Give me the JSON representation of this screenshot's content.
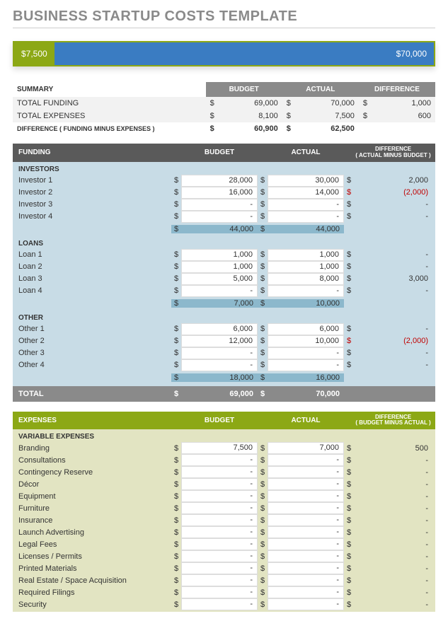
{
  "title": "BUSINESS STARTUP COSTS TEMPLATE",
  "bar": {
    "left_value": "$7,500",
    "right_value": "$70,000",
    "left_bg": "#8ca815",
    "right_bg": "#3a7cc2",
    "border": "#8ca815"
  },
  "summary": {
    "header": {
      "label": "SUMMARY",
      "col1": "BUDGET",
      "col2": "ACTUAL",
      "col3": "DIFFERENCE"
    },
    "rows": [
      {
        "label": "TOTAL FUNDING",
        "budget": "69,000",
        "actual": "70,000",
        "diff": "1,000",
        "light": true
      },
      {
        "label": "TOTAL EXPENSES",
        "budget": "8,100",
        "actual": "7,500",
        "diff": "600",
        "light": true
      }
    ],
    "diff_row": {
      "label": "DIFFERENCE  ( FUNDING MINUS EXPENSES )",
      "budget": "60,900",
      "actual": "62,500"
    }
  },
  "funding": {
    "header": {
      "title": "FUNDING",
      "col1": "BUDGET",
      "col2": "ACTUAL",
      "col3_l1": "DIFFERENCE",
      "col3_l2": "( ACTUAL MINUS BUDGET )"
    },
    "groups": [
      {
        "label": "INVESTORS",
        "rows": [
          {
            "name": "Investor 1",
            "budget": "28,000",
            "actual": "30,000",
            "diff": "2,000"
          },
          {
            "name": "Investor 2",
            "budget": "16,000",
            "actual": "14,000",
            "diff": "(2,000)",
            "neg": true
          },
          {
            "name": "Investor 3",
            "budget": "-",
            "actual": "-",
            "diff": "-"
          },
          {
            "name": "Investor 4",
            "budget": "-",
            "actual": "-",
            "diff": "-"
          }
        ],
        "subtotal": {
          "budget": "44,000",
          "actual": "44,000"
        }
      },
      {
        "label": "LOANS",
        "rows": [
          {
            "name": "Loan 1",
            "budget": "1,000",
            "actual": "1,000",
            "diff": "-"
          },
          {
            "name": "Loan 2",
            "budget": "1,000",
            "actual": "1,000",
            "diff": "-"
          },
          {
            "name": "Loan 3",
            "budget": "5,000",
            "actual": "8,000",
            "diff": "3,000"
          },
          {
            "name": "Loan 4",
            "budget": "-",
            "actual": "-",
            "diff": "-"
          }
        ],
        "subtotal": {
          "budget": "7,000",
          "actual": "10,000"
        }
      },
      {
        "label": "OTHER",
        "rows": [
          {
            "name": "Other 1",
            "budget": "6,000",
            "actual": "6,000",
            "diff": "-"
          },
          {
            "name": "Other 2",
            "budget": "12,000",
            "actual": "10,000",
            "diff": "(2,000)",
            "neg": true
          },
          {
            "name": "Other 3",
            "budget": "-",
            "actual": "-",
            "diff": "-"
          },
          {
            "name": "Other 4",
            "budget": "-",
            "actual": "-",
            "diff": "-"
          }
        ],
        "subtotal": {
          "budget": "18,000",
          "actual": "16,000"
        }
      }
    ],
    "total": {
      "label": "TOTAL",
      "budget": "69,000",
      "actual": "70,000"
    }
  },
  "expenses": {
    "header": {
      "title": "EXPENSES",
      "col1": "BUDGET",
      "col2": "ACTUAL",
      "col3_l1": "DIFFERENCE",
      "col3_l2": "( BUDGET MINUS ACTUAL )"
    },
    "group_label": "VARIABLE EXPENSES",
    "rows": [
      {
        "name": "Branding",
        "budget": "7,500",
        "actual": "7,000",
        "diff": "500"
      },
      {
        "name": "Consultations",
        "budget": "-",
        "actual": "-",
        "diff": "-"
      },
      {
        "name": "Contingency Reserve",
        "budget": "-",
        "actual": "-",
        "diff": "-"
      },
      {
        "name": "Décor",
        "budget": "-",
        "actual": "-",
        "diff": "-"
      },
      {
        "name": "Equipment",
        "budget": "-",
        "actual": "-",
        "diff": "-"
      },
      {
        "name": "Furniture",
        "budget": "-",
        "actual": "-",
        "diff": "-"
      },
      {
        "name": "Insurance",
        "budget": "-",
        "actual": "-",
        "diff": "-"
      },
      {
        "name": "Launch Advertising",
        "budget": "-",
        "actual": "-",
        "diff": "-"
      },
      {
        "name": "Legal Fees",
        "budget": "-",
        "actual": "-",
        "diff": "-"
      },
      {
        "name": "Licenses / Permits",
        "budget": "-",
        "actual": "-",
        "diff": "-"
      },
      {
        "name": "Printed Materials",
        "budget": "-",
        "actual": "-",
        "diff": "-"
      },
      {
        "name": "Real Estate / Space Acquisition",
        "budget": "-",
        "actual": "-",
        "diff": "-"
      },
      {
        "name": "Required Filings",
        "budget": "-",
        "actual": "-",
        "diff": "-"
      },
      {
        "name": "Security",
        "budget": "-",
        "actual": "-",
        "diff": "-"
      }
    ]
  },
  "currency_symbol": "$",
  "colors": {
    "title_text": "#8a8a8a",
    "header_dark": "#5a5a5a",
    "header_gray": "#8a8a8a",
    "header_green": "#8ca815",
    "funding_bg": "#c8dce6",
    "subtotal_bg": "#8cb8cc",
    "expenses_bg": "#e2e4c2",
    "negative": "#c00000"
  }
}
